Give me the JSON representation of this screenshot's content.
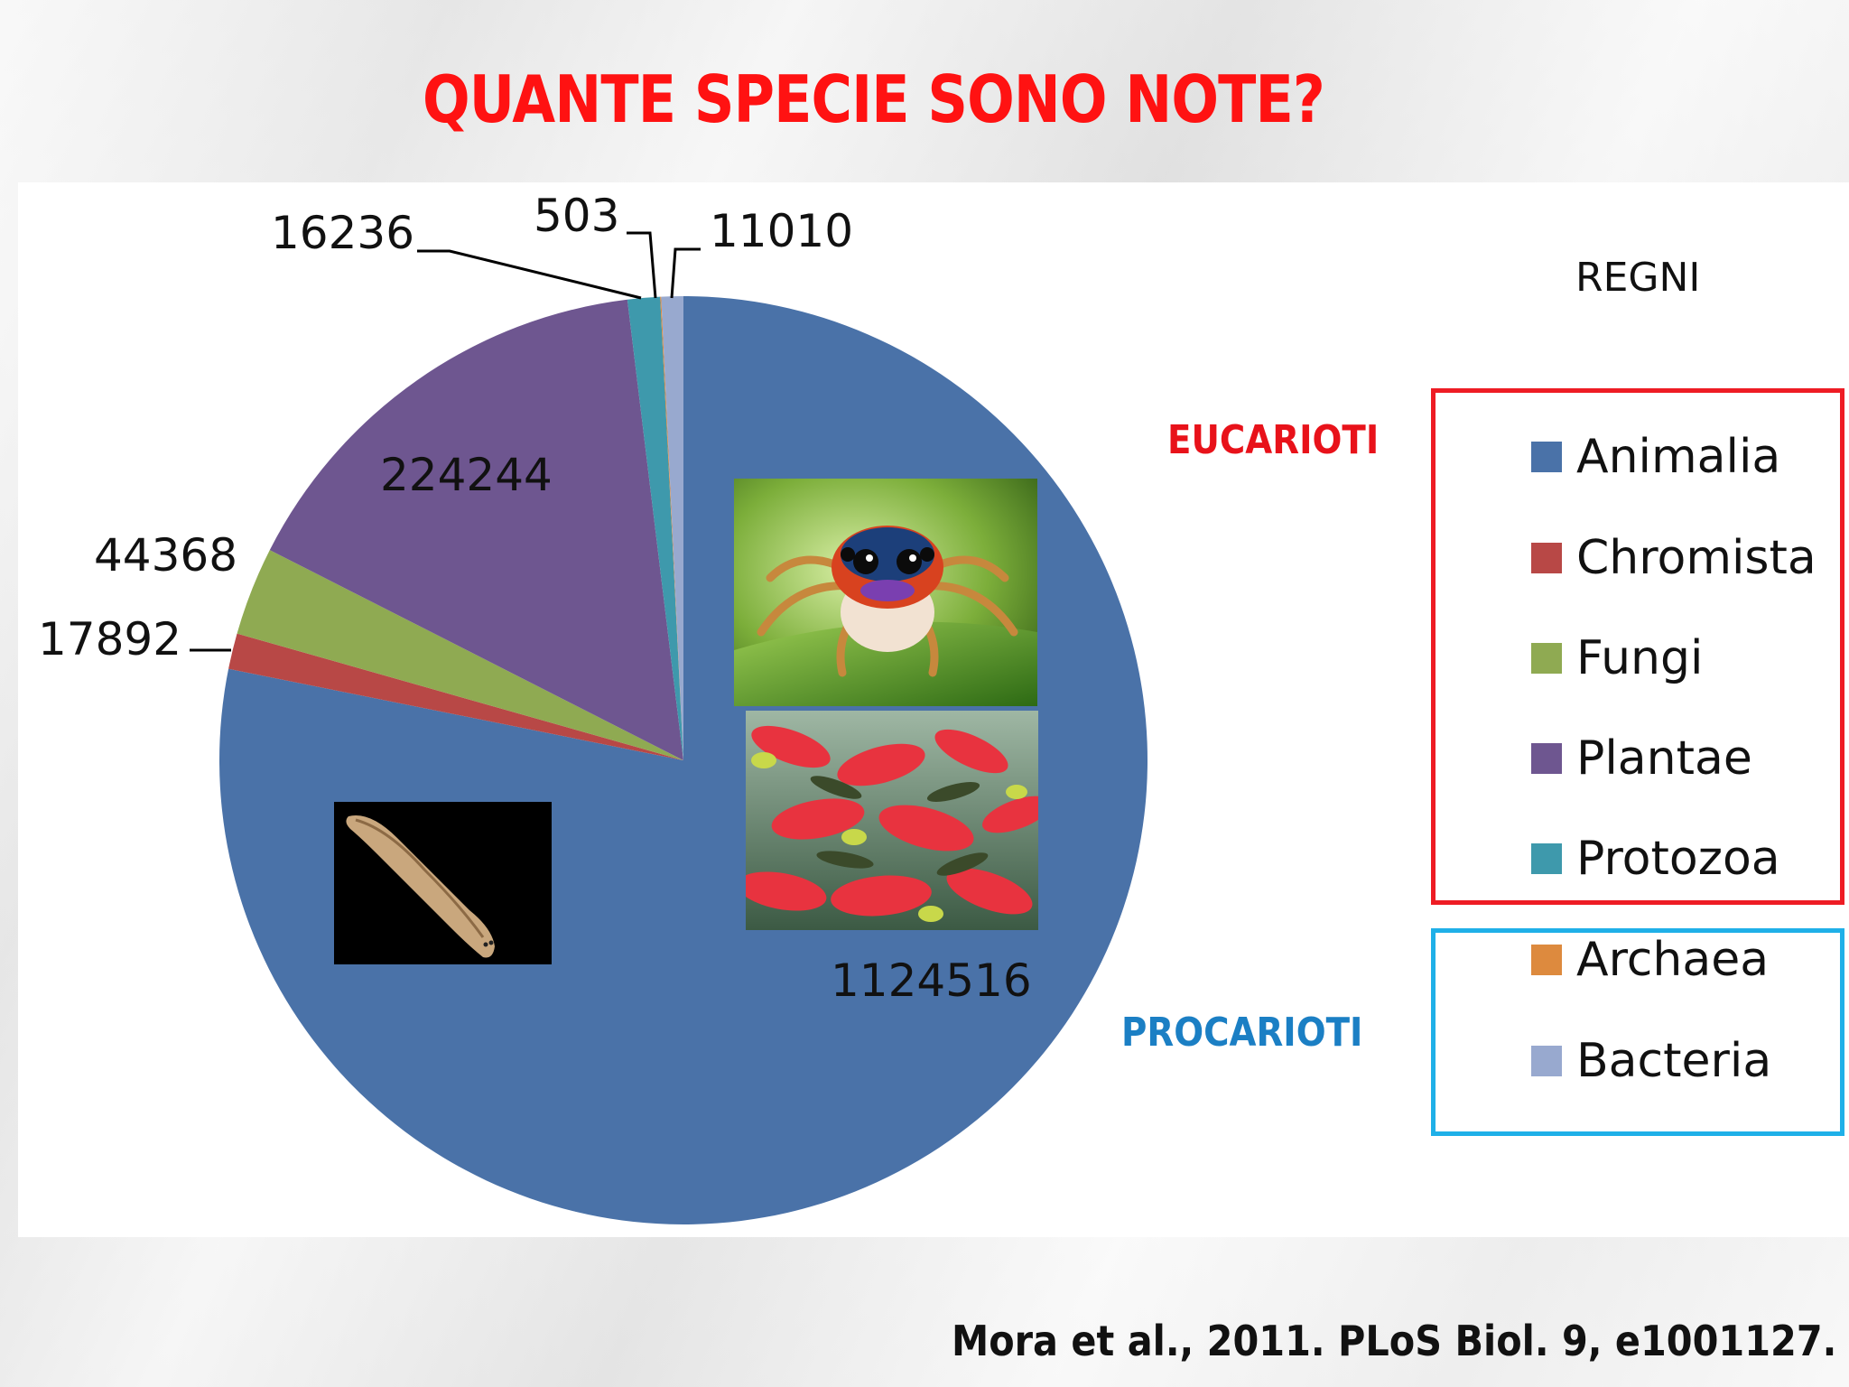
{
  "title": "QUANTE SPECIE SONO NOTE?",
  "citation": "Mora et al., 2011. PLoS Biol. 9, e1001127.",
  "groups": {
    "eukaryotes": "EUCARIOTI",
    "prokaryotes": "PROCARIOTI"
  },
  "colors": {
    "title": "#ff1212",
    "eukaryotes": "#e8121a",
    "prokaryotes": "#1b7fc4",
    "eukaryotes_box": "#ee1c24",
    "prokaryotes_box": "#1fb0e8"
  },
  "images": [
    "jumping-spider-photo",
    "salmon-school-photo",
    "flatworm-photo"
  ],
  "chart_data": {
    "type": "pie",
    "legend_title": "REGNI",
    "legend_position": "right",
    "slices": [
      {
        "name": "Animalia",
        "value": 1124516,
        "color": "#4a72a8",
        "label": "1124516"
      },
      {
        "name": "Chromista",
        "value": 17892,
        "color": "#b84846",
        "label": "17892"
      },
      {
        "name": "Fungi",
        "value": 44368,
        "color": "#8faa52",
        "label": "44368"
      },
      {
        "name": "Plantae",
        "value": 224244,
        "color": "#6e5690",
        "label": "224244"
      },
      {
        "name": "Protozoa",
        "value": 16236,
        "color": "#3e99ac",
        "label": "16236"
      },
      {
        "name": "Archaea",
        "value": 503,
        "color": "#dd8a3e",
        "label": "503"
      },
      {
        "name": "Bacteria",
        "value": 11010,
        "color": "#98a9cf",
        "label": "11010"
      }
    ]
  }
}
